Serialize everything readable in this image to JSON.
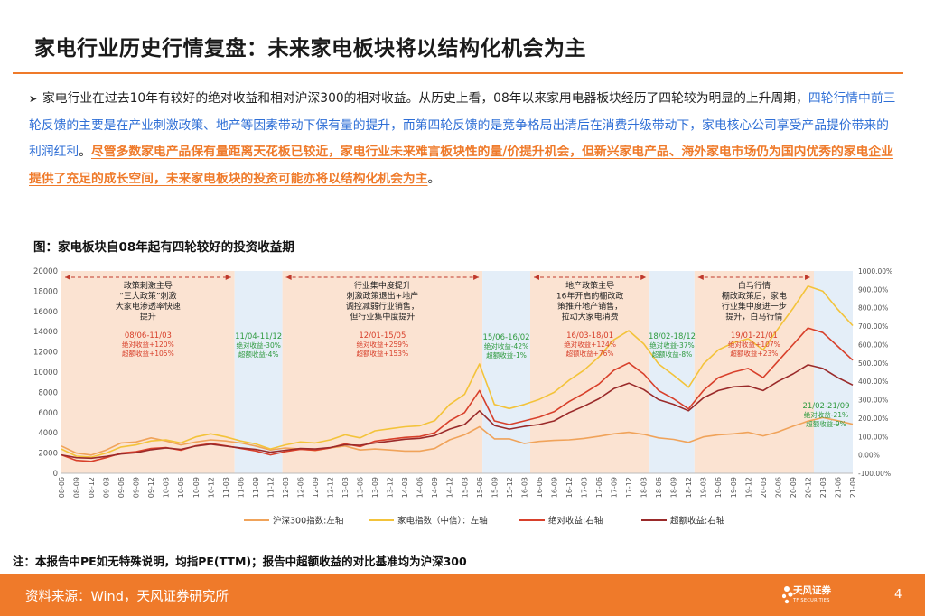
{
  "title": "家电行业历史行情复盘：未来家电板块将以结构化机会为主",
  "paragraph": {
    "bullet": "➤",
    "part1": "家电行业在过去10年有较好的绝对收益和相对沪深300的相对收益。从历史上看，08年以来家用电器板块经历了四轮较为明显的上升周期，",
    "part2_blue": "四轮行情中前三轮反馈的主要是在产业刺激政策、地产等因素带动下保有量的提升，而第四轮反馈的是竞争格局出清后在消费升级带动下，家电核心公司享受产品提价带来的利润红利",
    "part3": "。",
    "part4_orange": "尽管多数家电产品保有量距离天花板已较近，家电行业未来难言板块性的量/价提升机会，但新兴家电产品、海外家电市场仍为国内优秀的家电企业提供了充足的成长空间，未来家电板块的投资可能亦将以结构化机会为主",
    "part5": "。"
  },
  "figure_title": "图：家电板块自08年起有四轮较好的投资收益期",
  "note": "注：本报告中PE如无特殊说明，均指PE(TTM)；报告中超额收益的对比基准均为沪深300",
  "footer": {
    "source": "资料来源：Wind，天风证券研究所",
    "logo_text": "天风证券",
    "logo_sub": "TF SECURITIES",
    "page": "4"
  },
  "colors": {
    "accent": "#ef7a2a",
    "blue": "#2f6fd6",
    "csi300": "#f0a35a",
    "appliance": "#f3c33a",
    "absolute": "#d8402b",
    "excess": "#9a2a2a",
    "band_orange": "#fbe3d2",
    "band_blue": "#e4eef8"
  },
  "chart_data": {
    "type": "line",
    "left_axis": {
      "range": [
        0,
        20000
      ],
      "ticks": [
        "0",
        "2000",
        "4000",
        "6000",
        "8000",
        "10000",
        "12000",
        "14000",
        "16000",
        "18000",
        "20000"
      ]
    },
    "right_axis": {
      "range": [
        -100,
        1000
      ],
      "ticks": [
        "-100.00%",
        "0.00%",
        "100.00%",
        "200.00%",
        "300.00%",
        "400.00%",
        "500.00%",
        "600.00%",
        "700.00%",
        "800.00%",
        "900.00%",
        "1000.00%"
      ]
    },
    "x_labels": [
      "08-06",
      "08-09",
      "08-12",
      "09-03",
      "09-06",
      "09-09",
      "09-12",
      "10-03",
      "10-06",
      "10-09",
      "10-12",
      "11-03",
      "11-06",
      "11-09",
      "11-12",
      "12-03",
      "12-06",
      "12-09",
      "12-12",
      "13-03",
      "13-06",
      "13-09",
      "13-12",
      "14-03",
      "14-06",
      "14-09",
      "14-12",
      "15-03",
      "15-06",
      "15-09",
      "15-12",
      "16-03",
      "16-06",
      "16-09",
      "16-12",
      "17-03",
      "17-06",
      "17-09",
      "17-12",
      "18-03",
      "18-06",
      "18-09",
      "18-12",
      "19-03",
      "19-06",
      "19-09",
      "19-12",
      "20-03",
      "20-06",
      "20-09",
      "20-12",
      "21-03",
      "21-06",
      "21-09"
    ],
    "periods": [
      {
        "kind": "up",
        "from": 0,
        "to": 11.6,
        "label": [
          "政策刺激主导",
          "“三大政策”刺激",
          "大家电渗透率快速",
          "提升"
        ],
        "stat_range": "08/06-11/03",
        "stat1": "绝对收益+120%",
        "stat2": "超额收益+105%"
      },
      {
        "kind": "down",
        "from": 11.6,
        "to": 14.8,
        "label": [],
        "stat_range": "11/04-11/12",
        "stat1": "绝对收益-30%",
        "stat2": "超额收益-4%"
      },
      {
        "kind": "up",
        "from": 14.8,
        "to": 28.2,
        "label": [
          "行业集中度提升",
          "刺激政策退出+地产",
          "调控减弱行业销售，",
          "但行业集中度提升"
        ],
        "stat_range": "12/01-15/05",
        "stat1": "绝对收益+259%",
        "stat2": "超额收益+153%"
      },
      {
        "kind": "down",
        "from": 28.2,
        "to": 31.4,
        "label": [],
        "stat_range": "15/06-16/02",
        "stat1": "绝对收益-42%",
        "stat2": "超额收益-1%"
      },
      {
        "kind": "up",
        "from": 31.4,
        "to": 39.4,
        "label": [
          "地产政策主导",
          "16年开启的棚改政",
          "策推升地产销售，",
          "拉动大家电消费"
        ],
        "stat_range": "16/03-18/01",
        "stat1": "绝对收益+124%",
        "stat2": "超额收益+76%"
      },
      {
        "kind": "down",
        "from": 39.4,
        "to": 42.4,
        "label": [],
        "stat_range": "18/02-18/12",
        "stat1": "绝对收益-37%",
        "stat2": "超额收益-8%"
      },
      {
        "kind": "up",
        "from": 42.4,
        "to": 50.4,
        "label": [
          "白马行情",
          "棚改政策后，家电",
          "行业集中度进一步",
          "提升，白马行情"
        ],
        "stat_range": "19/01-21/01",
        "stat1": "绝对收益+107%",
        "stat2": "超额收益+23%"
      },
      {
        "kind": "down",
        "from": 50.4,
        "to": 53,
        "label": [],
        "stat_range": "21/02-21/09",
        "stat1": "绝对收益-21%",
        "stat2": "超额收益-9%"
      }
    ],
    "series": [
      {
        "name": "沪深300指数:左轴",
        "axis": "left",
        "values": [
          2700,
          2000,
          1800,
          2300,
          3000,
          3100,
          3500,
          3200,
          2800,
          3100,
          3300,
          3200,
          3000,
          2700,
          2300,
          2500,
          2400,
          2250,
          2500,
          2700,
          2300,
          2400,
          2300,
          2200,
          2200,
          2450,
          3300,
          3800,
          4600,
          3400,
          3400,
          2950,
          3150,
          3250,
          3300,
          3450,
          3650,
          3900,
          4050,
          3850,
          3500,
          3350,
          3050,
          3600,
          3800,
          3900,
          4050,
          3700,
          4100,
          4650,
          5150,
          5500,
          5200,
          4850
        ]
      },
      {
        "name": "家电指数（中信）：左轴",
        "axis": "left",
        "values": [
          2400,
          1700,
          1600,
          2000,
          2600,
          2800,
          3200,
          3300,
          3000,
          3600,
          3900,
          3600,
          3200,
          2900,
          2400,
          2800,
          3100,
          3000,
          3300,
          3800,
          3500,
          4200,
          4400,
          4600,
          4700,
          5200,
          6800,
          7800,
          10800,
          6800,
          6400,
          6800,
          7300,
          8000,
          9200,
          10200,
          11500,
          13200,
          14100,
          12800,
          10800,
          9700,
          8500,
          10800,
          12200,
          12900,
          13300,
          12200,
          14300,
          16300,
          18500,
          18000,
          16200,
          14600
        ]
      },
      {
        "name": "绝对收益:右轴",
        "axis": "right",
        "values": [
          0,
          -30,
          -35,
          -15,
          10,
          18,
          35,
          40,
          25,
          50,
          62,
          50,
          35,
          22,
          0,
          18,
          30,
          25,
          38,
          60,
          45,
          75,
          85,
          95,
          100,
          120,
          185,
          230,
          350,
          185,
          165,
          185,
          205,
          235,
          290,
          335,
          385,
          460,
          500,
          440,
          350,
          305,
          250,
          350,
          420,
          450,
          470,
          420,
          510,
          600,
          690,
          665,
          590,
          515
        ]
      },
      {
        "name": "超额收益:右轴",
        "axis": "right",
        "values": [
          0,
          -15,
          -18,
          -8,
          5,
          12,
          28,
          38,
          30,
          48,
          58,
          48,
          38,
          30,
          15,
          25,
          35,
          32,
          40,
          55,
          52,
          65,
          75,
          85,
          90,
          105,
          140,
          165,
          240,
          160,
          140,
          155,
          165,
          185,
          230,
          265,
          305,
          360,
          390,
          355,
          300,
          275,
          240,
          310,
          350,
          370,
          375,
          350,
          400,
          440,
          490,
          470,
          420,
          380
        ]
      }
    ]
  }
}
